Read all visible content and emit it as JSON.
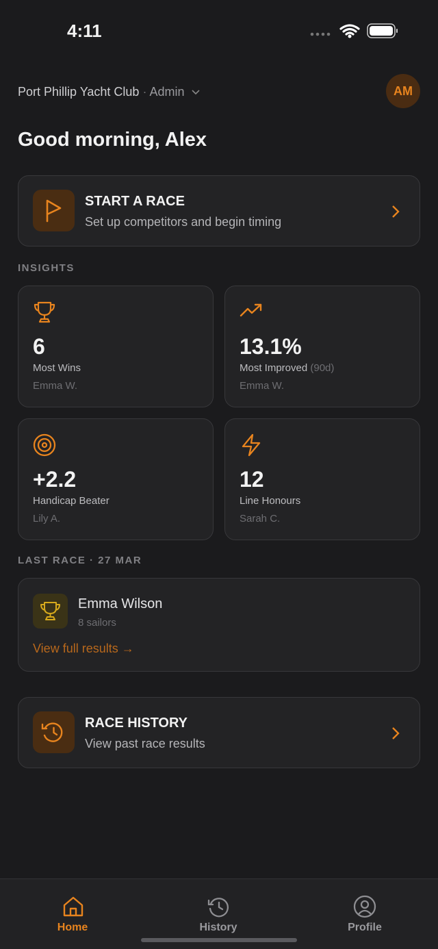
{
  "status_bar": {
    "time": "4:11"
  },
  "header": {
    "club": "Port Phillip Yacht Club",
    "separator": "·",
    "role": "Admin",
    "avatar": "AM",
    "greeting": "Good morning, Alex"
  },
  "start_race": {
    "title": "START A RACE",
    "subtitle": "Set up competitors and begin timing"
  },
  "insights": {
    "heading": "INSIGHTS",
    "cards": [
      {
        "value": "6",
        "label": "Most Wins",
        "name": "Emma W."
      },
      {
        "value": "13.1%",
        "label": "Most Improved",
        "note": "(90d)",
        "name": "Emma W."
      },
      {
        "value": "+2.2",
        "label": "Handicap Beater",
        "name": "Lily A."
      },
      {
        "value": "12",
        "label": "Line Honours",
        "name": "Sarah C."
      }
    ]
  },
  "last_race": {
    "heading": "LAST RACE · 27 MAR",
    "winner": "Emma Wilson",
    "sailors": "8 sailors",
    "link": "View full results →"
  },
  "race_history": {
    "title": "RACE HISTORY",
    "subtitle": "View past race results"
  },
  "tab_bar": {
    "tabs": [
      "Home",
      "History",
      "Profile"
    ]
  }
}
